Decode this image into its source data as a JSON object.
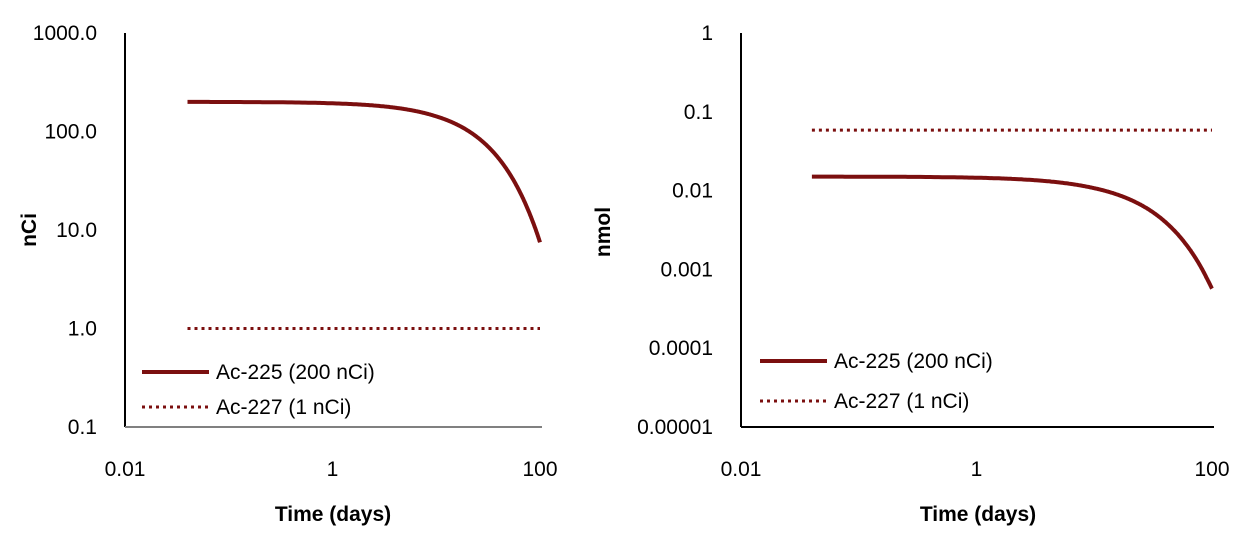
{
  "chart_data": [
    {
      "type": "line",
      "title": "",
      "xlabel": "Time (days)",
      "ylabel": "nCi",
      "x_scale": "log",
      "y_scale": "log",
      "xlim": [
        0.01,
        100
      ],
      "ylim": [
        0.1,
        1000
      ],
      "x_ticks": [
        "0.01",
        "1",
        "100"
      ],
      "y_ticks": [
        "0.1",
        "1.0",
        "10.0",
        "100.0",
        "1000.0"
      ],
      "grid": false,
      "legend_position": "bottom-left",
      "series": [
        {
          "name": "Ac-225 (200 nCi)",
          "style": "solid",
          "color": "#7b0f0f",
          "x": [
            0.04,
            0.1,
            0.3,
            1,
            2,
            4,
            6,
            8,
            10,
            15,
            20,
            30,
            40,
            50,
            60,
            70,
            80,
            90,
            100
          ],
          "y": [
            199.7,
            199.3,
            198.0,
            193.3,
            186.9,
            174.6,
            163.1,
            152.4,
            142.4,
            120.9,
            102.6,
            74.0,
            53.3,
            38.4,
            27.7,
            19.98,
            14.4,
            10.4,
            7.5
          ]
        },
        {
          "name": "Ac-227 (1 nCi)",
          "style": "dotted",
          "color": "#7b0f0f",
          "x": [
            0.04,
            100
          ],
          "y": [
            1.0,
            1.0
          ]
        }
      ]
    },
    {
      "type": "line",
      "title": "",
      "xlabel": "Time (days)",
      "ylabel": "nmol",
      "x_scale": "log",
      "y_scale": "log",
      "xlim": [
        0.01,
        100
      ],
      "ylim": [
        1e-05,
        1
      ],
      "x_ticks": [
        "0.01",
        "1",
        "100"
      ],
      "y_ticks": [
        "0.00001",
        "0.0001",
        "0.001",
        "0.01",
        "0.1",
        "1"
      ],
      "grid": false,
      "legend_position": "bottom-left",
      "series": [
        {
          "name": "Ac-225 (200 nCi)",
          "style": "solid",
          "color": "#7b0f0f",
          "x": [
            0.04,
            0.1,
            0.3,
            1,
            2,
            4,
            6,
            8,
            10,
            15,
            20,
            30,
            40,
            50,
            60,
            70,
            80,
            90,
            100
          ],
          "y": [
            0.01505,
            0.01502,
            0.01492,
            0.01457,
            0.01409,
            0.01316,
            0.01229,
            0.01148,
            0.01073,
            0.00911,
            0.00773,
            0.00558,
            0.00402,
            0.0029,
            0.00209,
            0.00151,
            0.00109,
            0.00078,
            0.00057
          ]
        },
        {
          "name": "Ac-227 (1 nCi)",
          "style": "dotted",
          "color": "#7b0f0f",
          "x": [
            0.04,
            100
          ],
          "y": [
            0.0586,
            0.0586
          ]
        }
      ]
    }
  ]
}
